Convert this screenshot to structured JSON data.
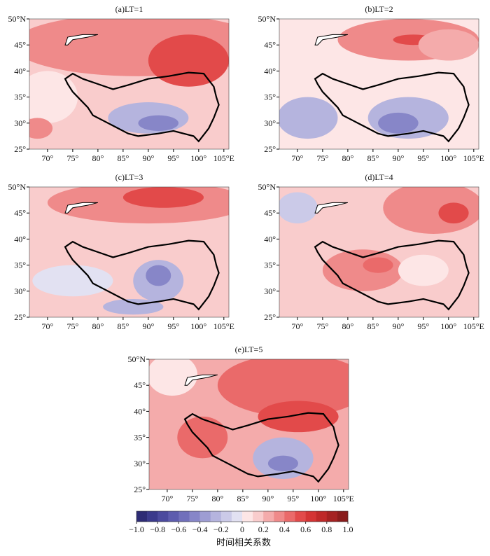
{
  "panels": [
    {
      "title": "(a)LT=1"
    },
    {
      "title": "(b)LT=2"
    },
    {
      "title": "(c)LT=3"
    },
    {
      "title": "(d)LT=4"
    },
    {
      "title": "(e)LT=5"
    }
  ],
  "lon_labels": [
    "70°",
    "75°",
    "80°",
    "85°",
    "90°",
    "95°",
    "100°",
    "105°E"
  ],
  "lat_labels": [
    "50°N",
    "45°",
    "40°",
    "35°",
    "30°",
    "25°"
  ],
  "colorbar": {
    "label": "时间相关系数",
    "ticks": [
      {
        "value": -1.0,
        "label": "−1.0"
      },
      {
        "value": -0.8,
        "label": "−0.8"
      },
      {
        "value": -0.6,
        "label": "−0.6"
      },
      {
        "value": -0.4,
        "label": "−0.4"
      },
      {
        "value": -0.2,
        "label": "−0.2"
      },
      0,
      0.2,
      0.4,
      0.6,
      0.8,
      {
        "value": 1.0,
        "label": "1.0"
      }
    ],
    "colors": [
      "#2e2c75",
      "#3b3a8c",
      "#4b4a9e",
      "#5d5cae",
      "#7170bb",
      "#8786c8",
      "#9e9dd3",
      "#b5b4de",
      "#cbcae8",
      "#e2e1f2",
      "#fde6e6",
      "#f9cccc",
      "#f4abab",
      "#ef8a8a",
      "#ea6a6a",
      "#e24a4a",
      "#d43434",
      "#bf2929",
      "#a52222",
      "#8a1c1c"
    ]
  }
}
